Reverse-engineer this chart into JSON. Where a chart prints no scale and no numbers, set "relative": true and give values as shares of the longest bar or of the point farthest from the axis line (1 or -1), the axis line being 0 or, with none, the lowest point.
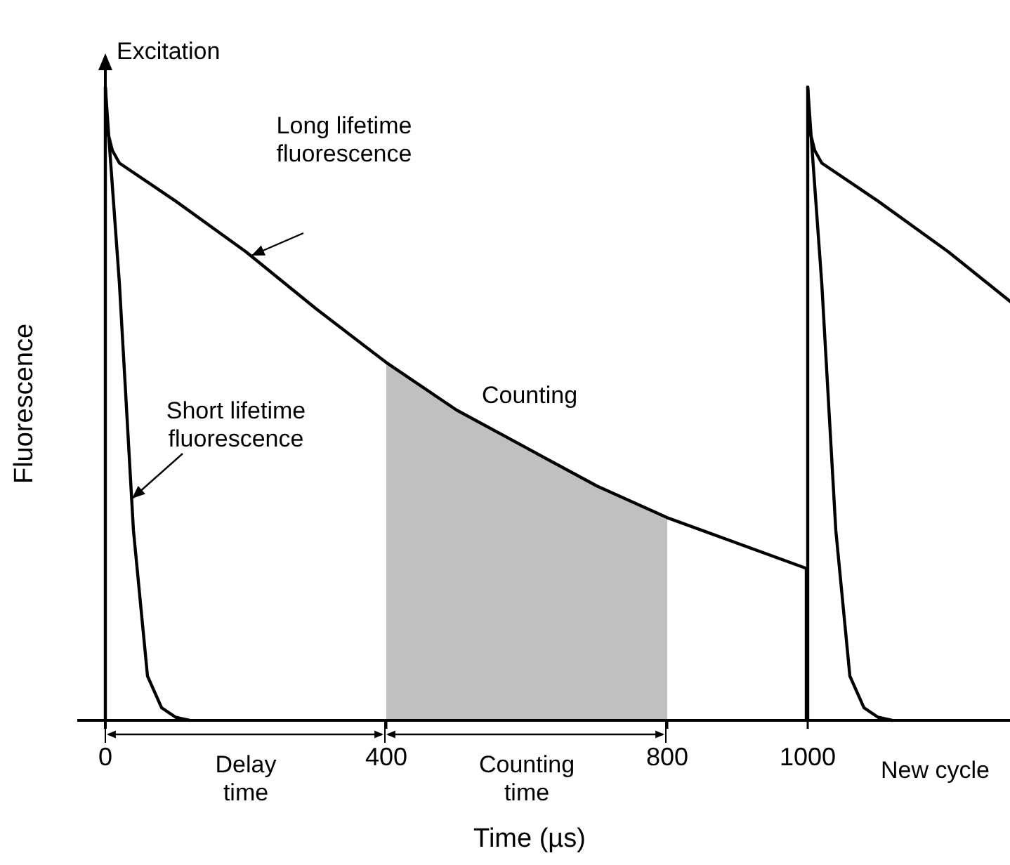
{
  "chart_data": {
    "type": "line",
    "relative": true,
    "xlabel": "Time (µs)",
    "ylabel": "Fluorescence",
    "xlim": [
      0,
      1290
    ],
    "xticks": [
      0,
      400,
      800,
      1000
    ],
    "tick_labels": "x",
    "line_style": "solid",
    "series": [
      {
        "color": "#000000",
        "x": [
          0,
          0,
          3,
          10,
          20,
          100,
          200,
          300,
          400,
          500,
          600,
          700,
          800,
          998,
          998
        ],
        "values": [
          0,
          1,
          0.93,
          0.9,
          0.88,
          0.82,
          0.74,
          0.65,
          0.565,
          0.49,
          0.43,
          0.37,
          0.32,
          0.24,
          0
        ]
      },
      {
        "color": "#000000",
        "x": [
          0,
          5,
          20,
          40,
          60,
          80,
          100,
          120
        ],
        "values": [
          1,
          0.92,
          0.69,
          0.3,
          0.07,
          0.02,
          0.005,
          0
        ]
      },
      {
        "color": "#000000",
        "x": [
          1000,
          1000,
          1003,
          1010,
          1020,
          1100,
          1200,
          1290
        ],
        "values": [
          0,
          1,
          0.93,
          0.9,
          0.88,
          0.82,
          0.74,
          0.66
        ]
      },
      {
        "color": "#000000",
        "x": [
          1000,
          1005,
          1020,
          1040,
          1060,
          1080,
          1100,
          1120
        ],
        "values": [
          1,
          0.92,
          0.69,
          0.3,
          0.07,
          0.02,
          0.005,
          0
        ]
      },
      {
        "type": "area",
        "color": "#c0c0c0",
        "x": [
          400,
          500,
          600,
          700,
          800
        ],
        "values": [
          0.565,
          0.49,
          0.43,
          0.37,
          0.32
        ]
      }
    ],
    "annotations": [
      {
        "text": "Excitation",
        "x": 0,
        "y": 1
      },
      "Long lifetime\nfluorescence",
      "Short lifetime\nfluorescence",
      "Counting",
      "New cycle",
      "Delay\ntime",
      "Counting\ntime"
    ]
  }
}
